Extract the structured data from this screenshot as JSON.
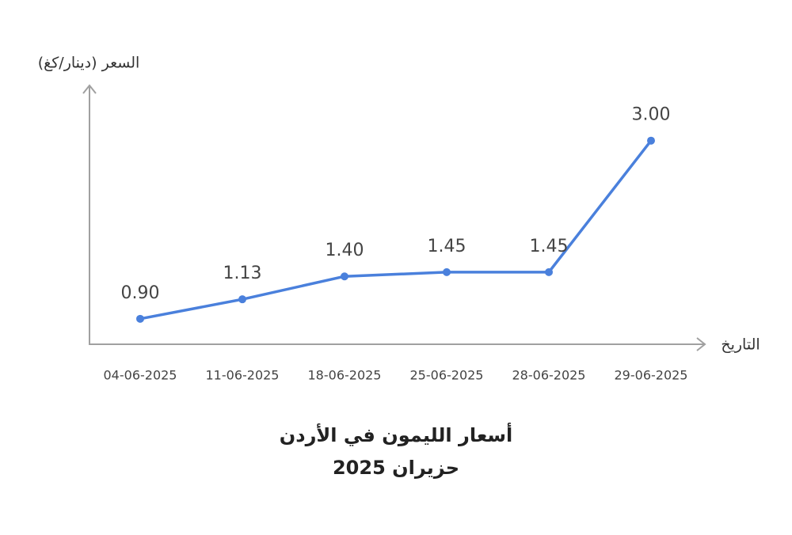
{
  "chart_data": {
    "type": "line",
    "title": "أسعار الليمون في الأردن",
    "subtitle": "حزيران 2025",
    "y_label": "السعر (دينار/كغ)",
    "x_label": "التاريخ",
    "categories": [
      "04-06-2025",
      "11-06-2025",
      "18-06-2025",
      "25-06-2025",
      "28-06-2025",
      "29-06-2025"
    ],
    "values": [
      0.9,
      1.13,
      1.4,
      1.45,
      1.45,
      3.0
    ],
    "value_labels": [
      "0.90",
      "1.13",
      "1.40",
      "1.45",
      "1.45",
      "3.00"
    ],
    "color": "#4a80dc",
    "ylim": [
      0.6,
      3.65
    ]
  }
}
